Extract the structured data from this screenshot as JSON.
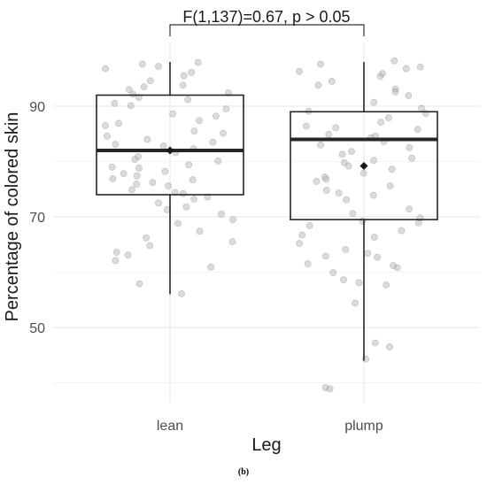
{
  "caption": "(b)",
  "chart_data": {
    "type": "boxplot",
    "title": "F(1,137)=0.67, p > 0.05",
    "xlabel": "Leg",
    "ylabel": "Percentage of colored skin",
    "categories": [
      "lean",
      "plump"
    ],
    "ylim": [
      37,
      99
    ],
    "yticks": [
      50,
      70,
      90
    ],
    "grid": true,
    "boxes": [
      {
        "category": "lean",
        "whisker_low": 56,
        "q1": 74,
        "median": 82,
        "q3": 92,
        "whisker_high": 98,
        "mean": 82
      },
      {
        "category": "plump",
        "whisker_low": 44,
        "q1": 69.5,
        "median": 84,
        "q3": 89,
        "whisker_high": 98,
        "mean": 79.2
      }
    ],
    "points": [
      {
        "category": "lean",
        "values": [
          97.2,
          96.8,
          94.6,
          92.2,
          91.6,
          90.1,
          87.4,
          86.5,
          84.6,
          84.0,
          82.3,
          80.4,
          78.2,
          76.7,
          75.9,
          74.4,
          72.5,
          71.3,
          69.5,
          66.2,
          64.8,
          63.1,
          60.9,
          57.9,
          56.1,
          97.6,
          96.1,
          93.8,
          93.0,
          92.4,
          91.2,
          89.5,
          88.6,
          86.9,
          85.1,
          83.5,
          82.8,
          81.6,
          80.9,
          79.0,
          78.8,
          77.4,
          76.2,
          75.6,
          74.9,
          73.6,
          71.8,
          68.8,
          67.4,
          62.1,
          97.9,
          95.5,
          93.5,
          90.5,
          88.2,
          85.5,
          83.1,
          80.1,
          79.4,
          77.8,
          76.9,
          74.2,
          73.2,
          70.5,
          65.5,
          63.6
        ]
      },
      {
        "category": "plump",
        "values": [
          98.2,
          97.6,
          96.8,
          96.3,
          95.4,
          94.5,
          93.8,
          93.1,
          91.9,
          90.7,
          89.6,
          88.7,
          87.9,
          87.1,
          86.4,
          85.8,
          84.9,
          84.3,
          83.6,
          83.0,
          82.5,
          81.3,
          80.6,
          79.8,
          79.2,
          78.6,
          77.9,
          77.2,
          76.4,
          75.6,
          74.8,
          73.9,
          73.1,
          71.4,
          70.6,
          69.8,
          69.2,
          68.4,
          67.5,
          66.3,
          65.2,
          64.1,
          63.4,
          62.7,
          61.5,
          60.8,
          59.9,
          58.6,
          57.7,
          54.4,
          47.2,
          46.5,
          44.3,
          39.1,
          38.9,
          97.1,
          95.9,
          92.6,
          89.1,
          86.1,
          84.6,
          81.8,
          80.2,
          76.8,
          74.3,
          68.9,
          66.7,
          62.9,
          61.2,
          58.1
        ]
      }
    ],
    "colors": {
      "box_stroke": "#262626",
      "median": "#262626",
      "point": "#b0b0b0",
      "grid": "#e6e6e6",
      "bracket": "#333333"
    }
  }
}
